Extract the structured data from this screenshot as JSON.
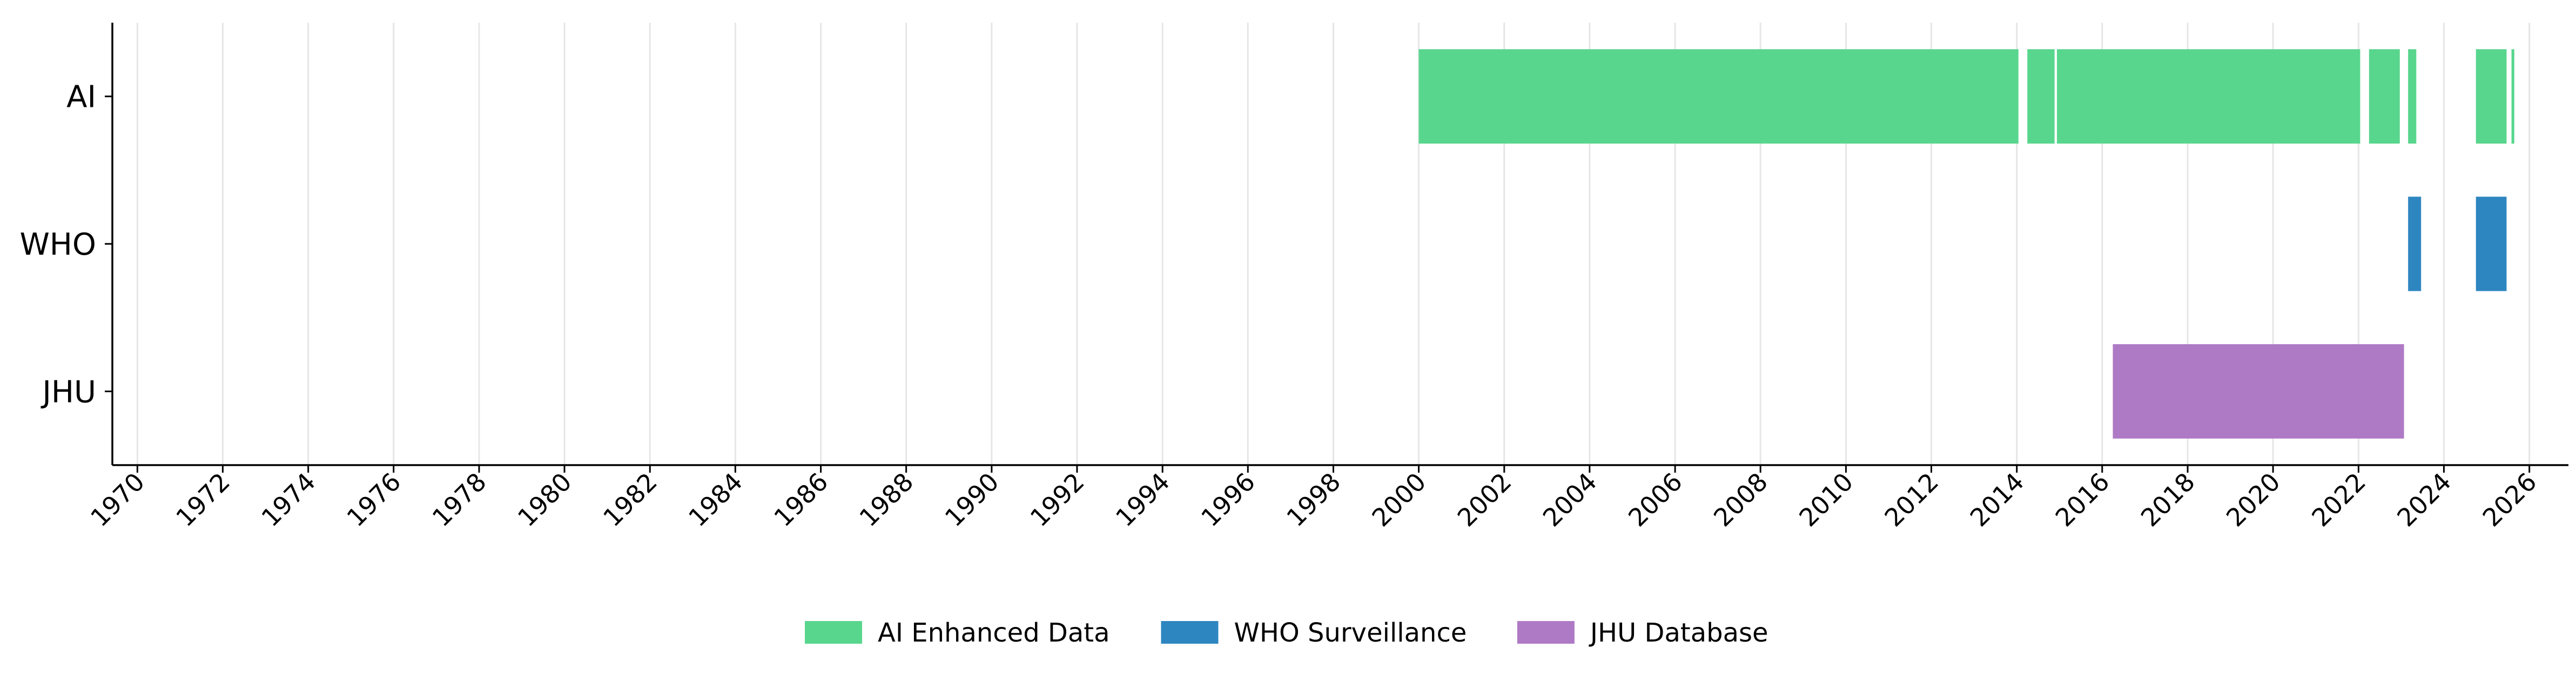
{
  "chart_data": {
    "type": "timeline",
    "title": "",
    "xlabel": "",
    "ylabel": "",
    "x_axis": {
      "type": "date",
      "range": [
        "1969-06-01",
        "2026-12-01"
      ],
      "ticks": [
        "1970",
        "1972",
        "1974",
        "1976",
        "1978",
        "1980",
        "1982",
        "1984",
        "1986",
        "1988",
        "1990",
        "1992",
        "1994",
        "1996",
        "1998",
        "2000",
        "2002",
        "2004",
        "2006",
        "2008",
        "2010",
        "2012",
        "2014",
        "2016",
        "2018",
        "2020",
        "2022",
        "2024",
        "2026"
      ]
    },
    "categories": [
      "AI",
      "WHO",
      "JHU"
    ],
    "grid": {
      "vertical": true,
      "horizontal": false
    },
    "legend": {
      "position": "bottom-center"
    },
    "series": [
      {
        "name": "AI Enhanced Data",
        "row": "AI",
        "color": "#58d68d",
        "segments": [
          {
            "start": "2000-01-01",
            "end": "2014-01-15"
          },
          {
            "start": "2014-04-01",
            "end": "2014-11-20"
          },
          {
            "start": "2014-12-10",
            "end": "2022-01-15"
          },
          {
            "start": "2022-04-01",
            "end": "2022-12-20"
          },
          {
            "start": "2023-03-01",
            "end": "2023-05-10"
          },
          {
            "start": "2024-10-01",
            "end": "2025-06-20"
          },
          {
            "start": "2025-08-01",
            "end": "2025-08-25"
          }
        ]
      },
      {
        "name": "WHO Surveillance",
        "row": "WHO",
        "color": "#2e86c1",
        "segments": [
          {
            "start": "2023-03-01",
            "end": "2023-06-20"
          },
          {
            "start": "2024-10-01",
            "end": "2025-06-20"
          }
        ]
      },
      {
        "name": "JHU Database",
        "row": "JHU",
        "color": "#af7ac5",
        "segments": [
          {
            "start": "2016-04-01",
            "end": "2023-01-25"
          }
        ]
      }
    ]
  }
}
